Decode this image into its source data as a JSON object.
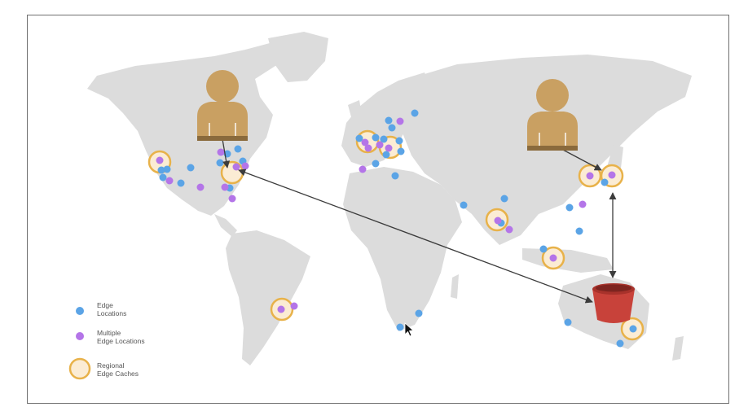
{
  "legend": {
    "edge_label": "Edge\nLocations",
    "multiple_label": "Multiple\nEdge Locations",
    "regional_label": "Regional\nEdge Caches"
  },
  "colors": {
    "land": "#dcdcdc",
    "edge_location": "#5ba4e6",
    "multiple_edge_location": "#b475e8",
    "regional_cache_ring": "#e8b24a",
    "regional_cache_fill": "#fbecd4",
    "user_figure": "#c9a062",
    "user_figure_dark": "#8a6a3c",
    "bucket": "#c8423a",
    "arrow": "#3c3c3c"
  },
  "icons": [
    "user-icon",
    "user-icon",
    "s3-bucket-icon",
    "mouse-cursor-icon"
  ]
}
